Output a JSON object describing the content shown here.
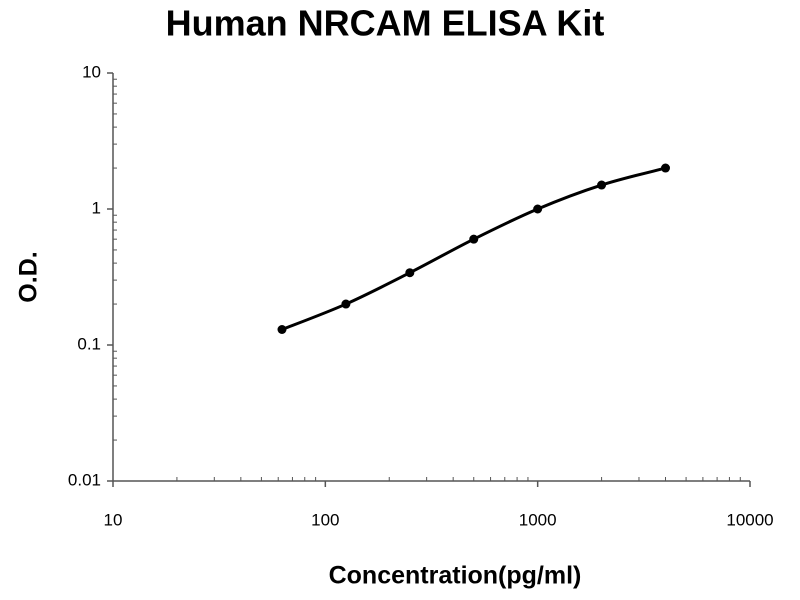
{
  "chart_data": {
    "type": "line",
    "title": "Human NRCAM ELISA Kit",
    "x_label": "Concentration(pg/ml)",
    "y_label": "O.D.",
    "x": [
      62.5,
      125,
      250,
      500,
      1000,
      2000,
      4000
    ],
    "series": [
      {
        "color": "#000000",
        "values": [
          0.13,
          0.2,
          0.34,
          0.6,
          1.0,
          1.5,
          2.0
        ]
      }
    ],
    "x_log": true,
    "y_log": true,
    "xlim": [
      10,
      10000
    ],
    "ylim": [
      0.01,
      10
    ],
    "xticks": [
      10,
      100,
      1000,
      10000
    ],
    "yticks": [
      0.01,
      0.1,
      1,
      10
    ],
    "markers": true,
    "smooth": true
  }
}
